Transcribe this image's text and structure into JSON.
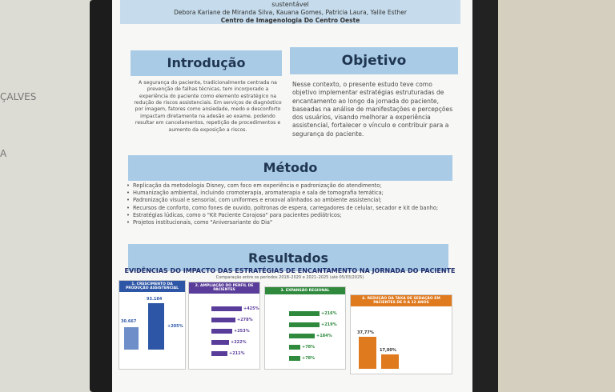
{
  "wall": {
    "label_1": "ÇALVES",
    "label_2": "A"
  },
  "header": {
    "subtitle": "sustentável",
    "authors": "Debora Kariane de Miranda Silva, Kauana Gomes, Patricia Laura, Yalile Esther",
    "institution": "Centro de Imagenologia Do Centro Oeste"
  },
  "introducao": {
    "title": "Introdução",
    "text": "A segurança do paciente, tradicionalmente centrada na prevenção de falhas técnicas, tem incorporado a experiência do paciente como elemento estratégico na redução de riscos assistenciais. Em serviços de diagnóstico por imagem, fatores como ansiedade, medo e desconforto impactam diretamente na adesão ao exame, podendo resultar em cancelamentos, repetição de procedimentos e aumento da exposição a riscos."
  },
  "objetivo": {
    "title": "Objetivo",
    "text": "Nesse contexto, o presente estudo teve como objetivo implementar estratégias estruturadas de encantamento ao longo da jornada do paciente, baseadas na análise de manifestações e percepções dos usuários, visando melhorar a experiência assistencial, fortalecer o vínculo e contribuir para a segurança do paciente."
  },
  "metodo": {
    "title": "Método",
    "items": [
      "Replicação da metodologia Disney, com foco em experiência e padronização do atendimento;",
      "Humanização ambiental, incluindo cromoterapia, aromaterapia e sala de tomografia temática;",
      "Padronização visual e sensorial, com uniformes e enxoval alinhados ao ambiente assistencial;",
      "Recursos de conforto, como fones de ouvido, poltronas de espera, carregadores de celular, secador e kit de banho;",
      "Estratégias lúdicas, como o \"Kit Paciente Corajoso\" para pacientes pediátricos;",
      "Projetos institucionais, como \"Aniversariante do Dia\""
    ]
  },
  "resultados": {
    "title": "Resultados",
    "infographic_title": "EVIDÊNCIAS DO IMPACTO DAS ESTRATÉGIAS DE ENCANTAMENTO NA JORNADA DO PACIENTE",
    "infographic_subtitle": "Comparação entre os períodos 2018–2020 e 2021–2025 (até 05/03/2025)",
    "panels": [
      {
        "title": "1. CRESCIMENTO DA PRODUÇÃO ASSISTENCIAL",
        "values": [
          "30.667",
          "93.184",
          "+205%"
        ]
      },
      {
        "title": "2. AMPLIAÇÃO DO PERFIL DE PACIENTES",
        "values": [
          "+425%",
          "+278%",
          "+253%",
          "+222%",
          "+211%"
        ]
      },
      {
        "title": "3. EXPANSÃO REGIONAL",
        "values": [
          "+216%",
          "+219%",
          "+184%",
          "+78%",
          "+78%"
        ]
      },
      {
        "title": "4. REDUÇÃO DA TAXA DE SEDAÇÃO EM PACIENTES DE 0 A 12 ANOS",
        "values": [
          "37,77%",
          "17,00%"
        ]
      }
    ]
  }
}
